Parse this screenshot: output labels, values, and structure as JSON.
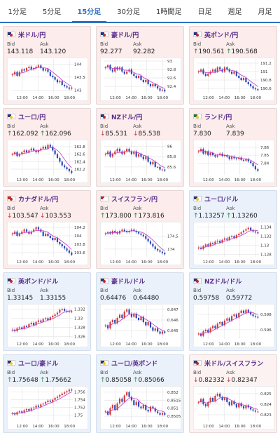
{
  "tabs": [
    {
      "label": "1分足",
      "active": false
    },
    {
      "label": "5分足",
      "active": false
    },
    {
      "label": "15分足",
      "active": true
    },
    {
      "label": "30分足",
      "active": false
    },
    {
      "label": "1時間足",
      "active": false
    },
    {
      "label": "日足",
      "active": false
    },
    {
      "label": "週足",
      "active": false
    },
    {
      "label": "月足",
      "active": false
    }
  ],
  "labels": {
    "bid": "Bid",
    "ask": "Ask"
  },
  "x_ticks": [
    "12:00",
    "14:00",
    "16:00",
    "18:00"
  ],
  "cards": [
    {
      "pair": "米ドル/円",
      "flag": "us-flag",
      "bid": "143.118",
      "ask": "143.120",
      "trend": "",
      "yticks": [
        "144",
        "143.5",
        "143"
      ],
      "ylim": [
        142.9,
        144.2
      ],
      "kind": "jpy",
      "closes": [
        143.6,
        143.7,
        143.55,
        143.7,
        143.8,
        143.75,
        143.85,
        143.9,
        143.8,
        143.85,
        143.9,
        143.95,
        143.85,
        143.75,
        143.8,
        143.7,
        143.55,
        143.5,
        143.4,
        143.3,
        143.35,
        143.2,
        143.15,
        143.1,
        143.05,
        143.1
      ]
    },
    {
      "pair": "豪ドル/円",
      "flag": "au-flag",
      "bid": "92.277",
      "ask": "92.282",
      "trend": "",
      "yticks": [
        "93",
        "92.8",
        "92.6",
        "92.4"
      ],
      "ylim": [
        92.25,
        93.05
      ],
      "kind": "jpy",
      "closes": [
        92.85,
        92.9,
        92.8,
        92.75,
        92.85,
        92.8,
        92.85,
        92.75,
        92.7,
        92.75,
        92.8,
        92.7,
        92.65,
        92.6,
        92.65,
        92.55,
        92.5,
        92.55,
        92.45,
        92.4,
        92.45,
        92.4,
        92.35,
        92.3,
        92.32,
        92.28
      ]
    },
    {
      "pair": "英ポンド/円",
      "flag": "gb-flag",
      "bid": "190.561",
      "ask": "190.568",
      "trend": "up",
      "yticks": [
        "191.2",
        "191",
        "190.8",
        "190.6"
      ],
      "ylim": [
        190.5,
        191.3
      ],
      "kind": "jpy",
      "closes": [
        191.0,
        191.05,
        190.95,
        190.9,
        190.95,
        191.0,
        191.05,
        191.0,
        191.1,
        191.05,
        191.0,
        191.1,
        191.05,
        191.0,
        190.95,
        191.0,
        190.9,
        190.85,
        190.8,
        190.85,
        190.75,
        190.7,
        190.65,
        190.6,
        190.58,
        190.56
      ]
    },
    {
      "pair": "ユーロ/円",
      "flag": "eu-flag",
      "bid": "162.092",
      "ask": "162.096",
      "trend": "up",
      "yticks": [
        "162.8",
        "162.6",
        "162.4",
        "162.2"
      ],
      "ylim": [
        162.05,
        162.95
      ],
      "kind": "jpy",
      "closes": [
        162.6,
        162.65,
        162.55,
        162.6,
        162.65,
        162.7,
        162.65,
        162.7,
        162.75,
        162.7,
        162.65,
        162.7,
        162.75,
        162.8,
        162.75,
        162.85,
        162.8,
        162.7,
        162.6,
        162.5,
        162.4,
        162.3,
        162.25,
        162.2,
        162.15,
        162.1
      ]
    },
    {
      "pair": "NZドル/円",
      "flag": "nz-flag",
      "bid": "85.531",
      "ask": "85.538",
      "trend": "dn",
      "yticks": [
        "86",
        "85.8",
        "85.6"
      ],
      "ylim": [
        85.45,
        86.1
      ],
      "kind": "jpy",
      "closes": [
        85.85,
        85.9,
        85.8,
        85.85,
        85.9,
        85.95,
        85.9,
        85.85,
        85.9,
        85.95,
        85.9,
        85.85,
        85.9,
        85.8,
        85.85,
        85.8,
        85.75,
        85.8,
        85.7,
        85.65,
        85.7,
        85.6,
        85.6,
        85.55,
        85.55,
        85.53
      ]
    },
    {
      "pair": "ランド/円",
      "flag": "za-flag",
      "bid": "7.830",
      "ask": "7.839",
      "trend": "",
      "yticks": [
        "7.86",
        "7.85",
        "7.84"
      ],
      "ylim": [
        7.825,
        7.868
      ],
      "kind": "jpy",
      "closes": [
        7.855,
        7.858,
        7.852,
        7.855,
        7.85,
        7.853,
        7.85,
        7.848,
        7.85,
        7.852,
        7.849,
        7.85,
        7.848,
        7.845,
        7.848,
        7.846,
        7.845,
        7.847,
        7.844,
        7.843,
        7.845,
        7.842,
        7.84,
        7.836,
        7.832,
        7.83
      ]
    },
    {
      "pair": "カナダドル/円",
      "flag": "ca-flag",
      "bid": "103.547",
      "ask": "103.553",
      "trend": "dn",
      "yticks": [
        "104.2",
        "104",
        "103.8",
        "103.6"
      ],
      "ylim": [
        103.5,
        104.3
      ],
      "kind": "jpy",
      "closes": [
        104.05,
        104.1,
        104.0,
        104.05,
        104.1,
        104.15,
        104.1,
        104.05,
        104.1,
        104.15,
        104.2,
        104.15,
        104.1,
        104.0,
        104.05,
        104.0,
        103.95,
        103.9,
        103.95,
        103.85,
        103.8,
        103.75,
        103.7,
        103.65,
        103.6,
        103.55
      ]
    },
    {
      "pair": "スイスフラン/円",
      "flag": "ch-flag",
      "bid": "173.800",
      "ask": "173.816",
      "trend": "up",
      "yticks": [
        "174.5",
        "174"
      ],
      "ylim": [
        173.7,
        175.0
      ],
      "kind": "jpy",
      "closes": [
        174.6,
        174.65,
        174.6,
        174.7,
        174.65,
        174.6,
        174.7,
        174.75,
        174.7,
        174.65,
        174.7,
        174.75,
        174.7,
        174.65,
        174.6,
        174.55,
        174.5,
        174.4,
        174.3,
        174.2,
        174.1,
        174.0,
        173.95,
        173.9,
        173.85,
        173.8
      ]
    },
    {
      "pair": "ユーロ/ドル",
      "flag": "eu-flag",
      "bid": "1.13257",
      "ask": "1.13260",
      "trend": "up",
      "yticks": [
        "1.134",
        "1.132",
        "1.13",
        "1.128"
      ],
      "ylim": [
        1.1275,
        1.1348
      ],
      "kind": "usd",
      "closes": [
        1.1295,
        1.1292,
        1.1298,
        1.1302,
        1.1299,
        1.1305,
        1.1303,
        1.1308,
        1.131,
        1.1306,
        1.1312,
        1.1315,
        1.1312,
        1.1318,
        1.132,
        1.1316,
        1.1322,
        1.1325,
        1.1328,
        1.1332,
        1.1335,
        1.1338,
        1.1333,
        1.133,
        1.1328,
        1.1326
      ]
    },
    {
      "pair": "英ポンド/ドル",
      "flag": "gb-flag",
      "bid": "1.33145",
      "ask": "1.33155",
      "trend": "",
      "yticks": [
        "1.332",
        "1.33",
        "1.328",
        "1.326"
      ],
      "ylim": [
        1.3255,
        1.3328
      ],
      "kind": "usd",
      "closes": [
        1.3275,
        1.3272,
        1.3278,
        1.328,
        1.3277,
        1.3283,
        1.3281,
        1.3287,
        1.329,
        1.3285,
        1.3292,
        1.3295,
        1.3292,
        1.3298,
        1.33,
        1.3296,
        1.3302,
        1.3305,
        1.3308,
        1.3312,
        1.3318,
        1.332,
        1.3316,
        1.3314,
        1.3315,
        1.3314
      ]
    },
    {
      "pair": "豪ドル/ドル",
      "flag": "au-flag",
      "bid": "0.64476",
      "ask": "0.64480",
      "trend": "",
      "yticks": [
        "0.647",
        "0.646",
        "0.645"
      ],
      "ylim": [
        0.6442,
        0.6474
      ],
      "kind": "usd",
      "closes": [
        0.6455,
        0.6452,
        0.6458,
        0.646,
        0.6457,
        0.6462,
        0.6465,
        0.6462,
        0.6468,
        0.647,
        0.6466,
        0.6463,
        0.6466,
        0.6462,
        0.646,
        0.6463,
        0.6458,
        0.6455,
        0.6458,
        0.6453,
        0.645,
        0.6452,
        0.6449,
        0.6447,
        0.6449,
        0.6448
      ]
    },
    {
      "pair": "NZドル/ドル",
      "flag": "nz-flag",
      "bid": "0.59758",
      "ask": "0.59772",
      "trend": "",
      "yticks": [
        "0.598",
        "0.596"
      ],
      "ylim": [
        0.5948,
        0.5992
      ],
      "kind": "usd",
      "closes": [
        0.5955,
        0.5952,
        0.5958,
        0.596,
        0.5957,
        0.5962,
        0.5965,
        0.5962,
        0.5968,
        0.597,
        0.5966,
        0.5972,
        0.5975,
        0.5972,
        0.5978,
        0.598,
        0.5976,
        0.5982,
        0.5985,
        0.5982,
        0.5986,
        0.5983,
        0.598,
        0.5978,
        0.5977,
        0.5976
      ]
    },
    {
      "pair": "ユーロ/豪ドル",
      "flag": "eu-flag",
      "bid": "1.75648",
      "ask": "1.75662",
      "trend": "up",
      "yticks": [
        "1.756",
        "1.754",
        "1.752",
        "1.75"
      ],
      "ylim": [
        1.7485,
        1.7572
      ],
      "kind": "usd",
      "closes": [
        1.7505,
        1.7502,
        1.7508,
        1.751,
        1.7507,
        1.7513,
        1.7516,
        1.7512,
        1.7518,
        1.752,
        1.7525,
        1.7522,
        1.7528,
        1.753,
        1.7534,
        1.7538,
        1.7535,
        1.754,
        1.7545,
        1.7548,
        1.7552,
        1.7556,
        1.7559,
        1.7562,
        1.7566,
        1.7565
      ]
    },
    {
      "pair": "ユーロ/英ポンド",
      "flag": "eu-flag",
      "bid": "0.85058",
      "ask": "0.85066",
      "trend": "up",
      "yticks": [
        "0.852",
        "0.8515",
        "0.851",
        "0.8505"
      ],
      "ylim": [
        0.8502,
        0.8523
      ],
      "kind": "usd",
      "closes": [
        0.8508,
        0.8506,
        0.851,
        0.8512,
        0.8509,
        0.8513,
        0.8516,
        0.8514,
        0.8518,
        0.852,
        0.8517,
        0.8515,
        0.8512,
        0.8514,
        0.8511,
        0.851,
        0.8512,
        0.8509,
        0.8508,
        0.8511,
        0.851,
        0.8508,
        0.8507,
        0.8506,
        0.8507,
        0.8506
      ]
    },
    {
      "pair": "米ドル/スイスフラン",
      "flag": "us-flag",
      "bid": "0.82332",
      "ask": "0.82347",
      "trend": "dn",
      "yticks": [
        "0.825",
        "0.824",
        "0.823"
      ],
      "ylim": [
        0.8224,
        0.8256
      ],
      "kind": "oth",
      "closes": [
        0.8242,
        0.8245,
        0.824,
        0.8238,
        0.8242,
        0.8246,
        0.8243,
        0.8248,
        0.825,
        0.8247,
        0.8244,
        0.8246,
        0.8242,
        0.8239,
        0.8243,
        0.824,
        0.8237,
        0.8241,
        0.8238,
        0.8236,
        0.8239,
        0.8237,
        0.8235,
        0.8234,
        0.8233,
        0.8233
      ]
    }
  ],
  "colors": {
    "up_candle": "#d23a3a",
    "down_candle": "#2848b8",
    "ma_line": "#c437c4",
    "grid": "#dddddd",
    "accent": "#2d6fc2"
  },
  "flags": {
    "us-flag": [
      "#1e3a8a",
      "#c62828"
    ],
    "au-flag": [
      "#1e3a8a",
      "#c62828"
    ],
    "gb-flag": [
      "#1e3a8a",
      "#c62828"
    ],
    "eu-flag": [
      "#1e3a8a",
      "#f4c430"
    ],
    "nz-flag": [
      "#1e3a8a",
      "#c62828"
    ],
    "za-flag": [
      "#1e7a3a",
      "#f4c430"
    ],
    "ca-flag": [
      "#c62828",
      "#c62828"
    ],
    "ch-flag": [
      "#c62828",
      "#ffffff"
    ]
  }
}
